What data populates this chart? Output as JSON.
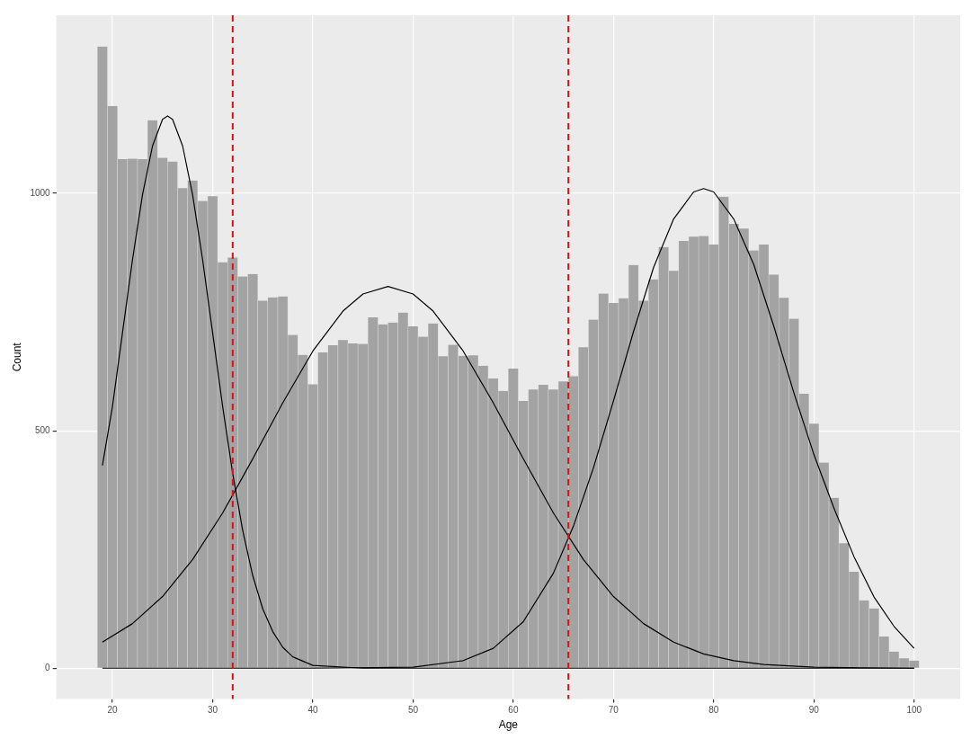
{
  "chart_data": {
    "type": "histogram",
    "xlabel": "Age",
    "ylabel": "Count",
    "bins": [
      18.5,
      19.5,
      20.5,
      21.5,
      22.5,
      23.5,
      24.5,
      25.5,
      26.5,
      27.5,
      28.5,
      29.5,
      30.5,
      31.5,
      32.5,
      33.5,
      34.5,
      35.5,
      36.5,
      37.5,
      38.5,
      39.5,
      40.5,
      41.5,
      42.5,
      43.5,
      44.5,
      45.5,
      46.5,
      47.5,
      48.5,
      49.5,
      50.5,
      51.5,
      52.5,
      53.5,
      54.5,
      55.5,
      56.5,
      57.5,
      58.5,
      59.5,
      60.5,
      61.5,
      62.5,
      63.5,
      64.5,
      65.5,
      66.5,
      67.5,
      68.5,
      69.5,
      70.5,
      71.5,
      72.5,
      73.5,
      74.5,
      75.5,
      76.5,
      77.5,
      78.5,
      79.5,
      80.5,
      81.5,
      82.5,
      83.5,
      84.5,
      85.5,
      86.5,
      87.5,
      88.5,
      89.5,
      90.5,
      91.5,
      92.5,
      93.5,
      94.5,
      95.5,
      96.5,
      97.5,
      98.5,
      99.5,
      100.5
    ],
    "values": [
      1309,
      1184,
      1072,
      1073,
      1072,
      1154,
      1075,
      1067,
      1011,
      1027,
      984,
      994,
      855,
      865,
      825,
      830,
      774,
      781,
      783,
      702,
      660,
      598,
      665,
      680,
      691,
      684,
      683,
      739,
      724,
      728,
      749,
      720,
      698,
      726,
      657,
      681,
      658,
      659,
      637,
      610,
      584,
      631,
      563,
      587,
      597,
      587,
      604,
      615,
      676,
      734,
      789,
      769,
      779,
      849,
      774,
      819,
      887,
      837,
      900,
      909,
      910,
      892,
      993,
      936,
      926,
      880,
      892,
      829,
      780,
      736,
      578,
      515,
      433,
      359,
      263,
      203,
      143,
      126,
      67,
      35,
      21,
      16
    ],
    "color": "#a3a3a3",
    "series": [
      {
        "type": "line",
        "color": "#000000",
        "x": [
          19,
          20,
          21,
          22,
          23,
          24,
          25,
          25.5,
          26,
          27,
          28,
          29,
          30,
          31,
          32,
          33,
          34,
          35,
          36,
          37,
          38,
          40,
          45,
          60,
          80,
          100
        ],
        "values": [
          427,
          551,
          706,
          860,
          997,
          1100,
          1156,
          1163,
          1156,
          1100,
          997,
          860,
          706,
          551,
          410,
          290,
          195,
          125,
          77,
          44,
          24,
          6,
          0,
          0,
          0,
          0
        ]
      },
      {
        "type": "line",
        "color": "#000000",
        "x": [
          19,
          22,
          25,
          28,
          31,
          34,
          37,
          40,
          43,
          45,
          47.5,
          50,
          52,
          55,
          58,
          61,
          64,
          67,
          70,
          73,
          76,
          79,
          82,
          85,
          90,
          95,
          100
        ],
        "values": [
          55,
          94,
          151,
          229,
          327,
          441,
          559,
          668,
          752,
          788,
          804,
          788,
          752,
          668,
          559,
          441,
          327,
          229,
          151,
          94,
          55,
          30,
          16,
          8,
          2,
          1,
          0
        ]
      },
      {
        "type": "line",
        "color": "#000000",
        "x": [
          19,
          40,
          50,
          55,
          58,
          61,
          64,
          66,
          68,
          70,
          72,
          74,
          76,
          78,
          79,
          80,
          82,
          84,
          86,
          88,
          90,
          92,
          94,
          96,
          98,
          100
        ],
        "values": [
          0,
          0,
          2,
          16,
          42,
          98,
          200,
          299,
          422,
          563,
          709,
          844,
          946,
          1003,
          1010,
          1003,
          946,
          850,
          720,
          580,
          450,
          337,
          235,
          150,
          88,
          42
        ]
      }
    ],
    "ref_lines": [
      {
        "axis": "x",
        "value": 32,
        "color": "#dd1111",
        "line_style": "dashed"
      },
      {
        "axis": "x",
        "value": 65.5,
        "color": "#dd1111",
        "line_style": "dashed"
      }
    ],
    "xlim": [
      14.4,
      104.6
    ],
    "xticks": [
      20,
      30,
      40,
      50,
      60,
      70,
      80,
      90,
      100
    ],
    "ylim": [
      -65,
      1375
    ],
    "yticks": [
      0,
      500,
      1000
    ],
    "grid": true
  }
}
